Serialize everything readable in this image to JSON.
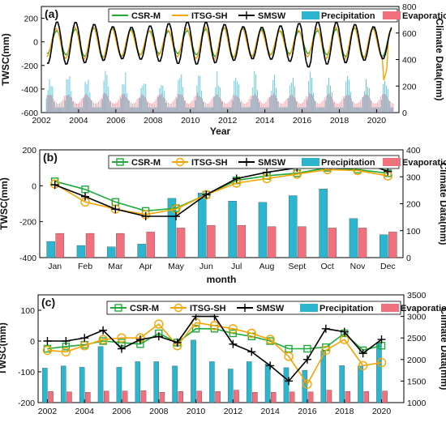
{
  "chart_data": [
    {
      "type": "line",
      "panel_label": "(a)",
      "xlabel": "Year",
      "ylabel_left": "TWSC(mm)",
      "ylabel_right": "Climate Data(mm)",
      "xlim": [
        2002,
        2021.2
      ],
      "ylim_left": [
        -600,
        300
      ],
      "ylim_right": [
        0,
        800
      ],
      "xticks": [
        "2002",
        "2004",
        "2006",
        "2008",
        "2010",
        "2012",
        "2014",
        "2016",
        "2018",
        "2020"
      ],
      "yticks_left": [
        "-600",
        "-400",
        "-200",
        "0",
        "200"
      ],
      "yticks_right": [
        "0",
        "200",
        "400",
        "600",
        "800"
      ],
      "legend": [
        "CSR-M",
        "ITSG-SH",
        "SMSW",
        "Precipitation",
        "Evaporation"
      ],
      "colors": {
        "csr": "#1faa3c",
        "itsg": "#f5a400",
        "smsw": "#000000",
        "precip": "#2bb5cf",
        "evap": "#f0707e"
      },
      "series": [
        {
          "name": "CSR-M",
          "kind": "seasonal",
          "amp": 110,
          "offset": -5
        },
        {
          "name": "ITSG-SH",
          "kind": "seasonal",
          "amp": 120,
          "offset": -10
        },
        {
          "name": "SMSW",
          "kind": "seasonal",
          "amp": 160,
          "offset": -10
        },
        {
          "name": "Precipitation",
          "kind": "monthly-bars",
          "range": [
            0,
            330
          ]
        },
        {
          "name": "Evaporation",
          "kind": "monthly-bars",
          "range": [
            0,
            150
          ]
        }
      ]
    },
    {
      "type": "bar-line",
      "panel_label": "(b)",
      "xlabel": "month",
      "ylabel_left": "TWSC(mm)",
      "ylabel_right": "Climate Data(mm)",
      "ylim_left": [
        -400,
        200
      ],
      "ylim_right": [
        0,
        400
      ],
      "yticks_left": [
        "-400",
        "-200",
        "0",
        "200"
      ],
      "yticks_right": [
        "0",
        "100",
        "200",
        "300",
        "400"
      ],
      "categories": [
        "Jan",
        "Feb",
        "Mar",
        "Apr",
        "May",
        "Jun",
        "Jul",
        "Aug",
        "Sept",
        "Oct",
        "Nov",
        "Dec"
      ],
      "legend": [
        "CSR-M",
        "ITSG-SH",
        "SMSW",
        "Precipitation",
        "Evaporation"
      ],
      "series": [
        {
          "name": "CSR-M",
          "axis": "left",
          "values": [
            25,
            -20,
            -90,
            -140,
            -125,
            -50,
            30,
            55,
            70,
            100,
            90,
            70
          ]
        },
        {
          "name": "ITSG-SH",
          "axis": "left",
          "values": [
            10,
            -90,
            -130,
            -160,
            -130,
            -50,
            15,
            40,
            65,
            90,
            85,
            55
          ]
        },
        {
          "name": "SMSW",
          "axis": "left",
          "values": [
            5,
            -60,
            -130,
            -170,
            -170,
            -50,
            40,
            75,
            100,
            145,
            140,
            80
          ]
        },
        {
          "name": "Precipitation",
          "axis": "right",
          "values": [
            60,
            45,
            40,
            50,
            220,
            240,
            210,
            205,
            230,
            255,
            145,
            85
          ]
        },
        {
          "name": "Evaporation",
          "axis": "right",
          "values": [
            90,
            90,
            90,
            95,
            110,
            120,
            120,
            115,
            115,
            110,
            110,
            95
          ]
        }
      ]
    },
    {
      "type": "bar-line",
      "panel_label": "(c)",
      "xlabel": "",
      "ylabel_left": "TWSC(mm)",
      "ylabel_right": "Climate Data(mm)",
      "ylim_left": [
        -200,
        150
      ],
      "ylim_right": [
        1000,
        3500
      ],
      "xlim": [
        2001.5,
        2021.2
      ],
      "xticks": [
        "2002",
        "2004",
        "2006",
        "2008",
        "2010",
        "2012",
        "2014",
        "2016",
        "2018",
        "2020"
      ],
      "yticks_left": [
        "-200",
        "-100",
        "0",
        "100"
      ],
      "yticks_right": [
        "1000",
        "1500",
        "2000",
        "2500",
        "3000",
        "3500"
      ],
      "x": [
        2002,
        2003,
        2004,
        2005,
        2006,
        2007,
        2008,
        2009,
        2010,
        2011,
        2012,
        2013,
        2014,
        2015,
        2016,
        2017,
        2018,
        2019,
        2020
      ],
      "legend": [
        "CSR-M",
        "ITSG-SH",
        "SMSW",
        "Precipitation",
        "Evaporation"
      ],
      "series": [
        {
          "name": "CSR-M",
          "axis": "left",
          "values": [
            -25,
            -18,
            -12,
            0,
            -5,
            -10,
            25,
            -5,
            40,
            40,
            25,
            15,
            0,
            -25,
            -25,
            -20,
            25,
            -30,
            -15
          ]
        },
        {
          "name": "ITSG-SH",
          "axis": "left",
          "values": [
            -30,
            -35,
            -15,
            5,
            10,
            10,
            55,
            -15,
            60,
            50,
            40,
            25,
            5,
            -50,
            -140,
            -30,
            5,
            -80,
            -70
          ]
        },
        {
          "name": "SMSW",
          "axis": "left",
          "values": [
            0,
            0,
            10,
            35,
            -25,
            5,
            15,
            -5,
            80,
            80,
            -10,
            -35,
            -80,
            -130,
            -60,
            40,
            30,
            -40,
            5
          ]
        },
        {
          "name": "Precipitation",
          "axis": "right",
          "values": [
            1800,
            1850,
            1820,
            2300,
            1820,
            1950,
            1950,
            1850,
            2450,
            1950,
            1780,
            1950,
            1900,
            1810,
            1750,
            2200,
            1860,
            1850,
            2380
          ]
        },
        {
          "name": "Evaporation",
          "axis": "right",
          "values": [
            1260,
            1250,
            1240,
            1270,
            1270,
            1280,
            1240,
            1260,
            1270,
            1260,
            1290,
            1240,
            1240,
            1250,
            1250,
            1290,
            1260,
            1260,
            1270
          ]
        }
      ]
    }
  ]
}
